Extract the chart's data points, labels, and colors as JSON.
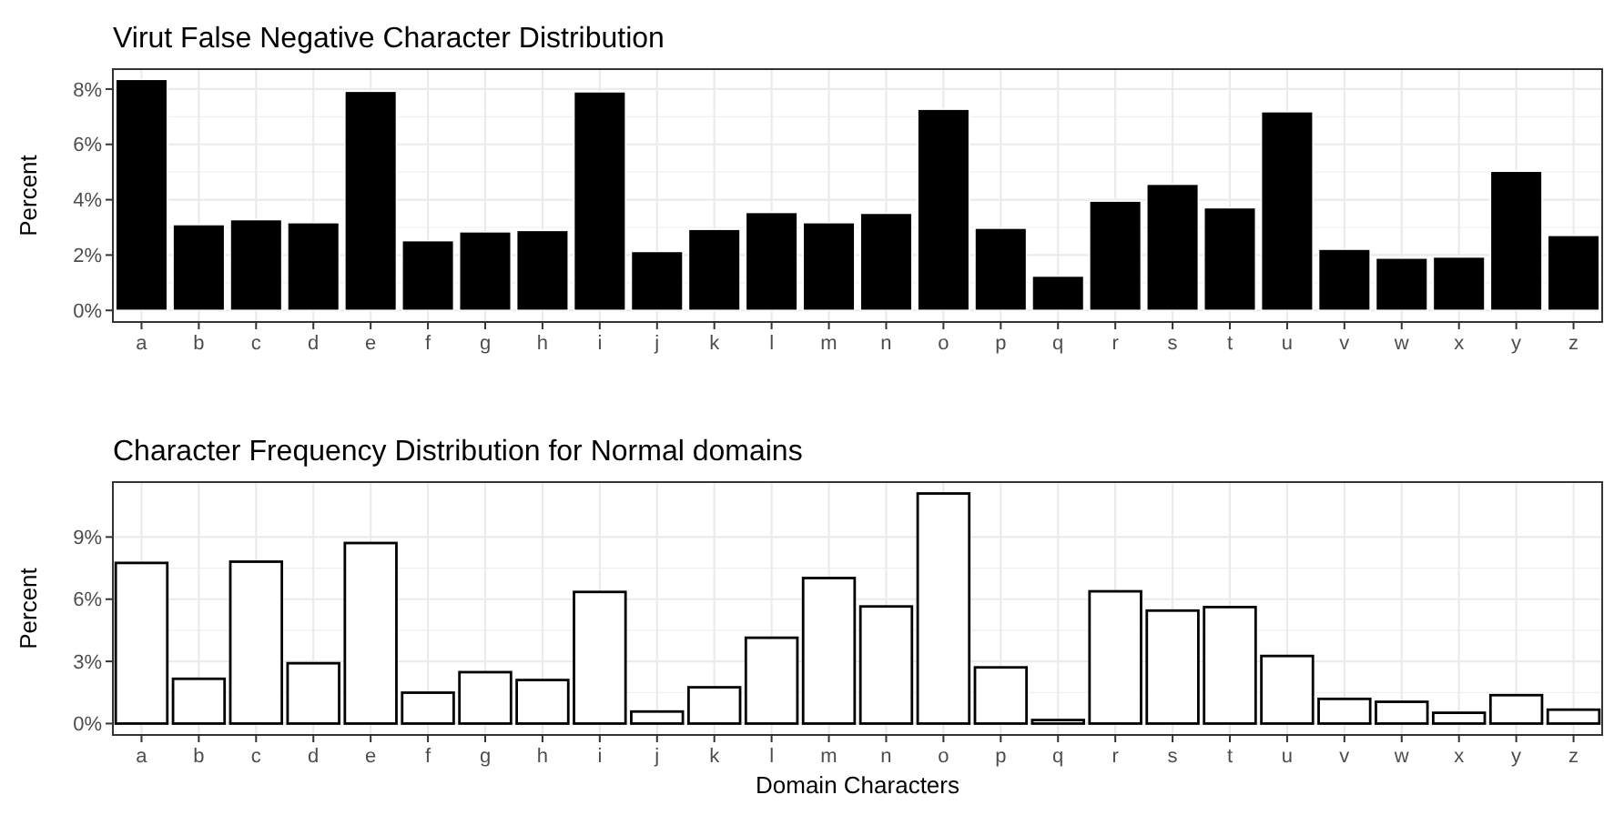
{
  "chart_data": [
    {
      "type": "bar",
      "title": "Virut False Negative Character Distribution",
      "ylabel": "Percent",
      "categories": [
        "a",
        "b",
        "c",
        "d",
        "e",
        "f",
        "g",
        "h",
        "i",
        "j",
        "k",
        "l",
        "m",
        "n",
        "o",
        "p",
        "q",
        "r",
        "s",
        "t",
        "u",
        "v",
        "w",
        "x",
        "y",
        "z"
      ],
      "series": [
        {
          "color": "#000000",
          "values": [
            8.35,
            3.1,
            3.28,
            3.17,
            7.92,
            2.52,
            2.84,
            2.89,
            7.9,
            2.13,
            2.93,
            3.54,
            3.17,
            3.51,
            7.27,
            2.97,
            1.24,
            3.95,
            4.56,
            3.71,
            7.18,
            2.21,
            1.89,
            1.93,
            5.03,
            2.71
          ]
        }
      ],
      "ylim": [
        -0.42,
        8.72
      ],
      "yticks": [
        {
          "value": 0,
          "label": "0%"
        },
        {
          "value": 2,
          "label": "2%"
        },
        {
          "value": 4,
          "label": "4%"
        },
        {
          "value": 6,
          "label": "6%"
        },
        {
          "value": 8,
          "label": "8%"
        }
      ],
      "grid": true
    },
    {
      "type": "bar",
      "title": "Character Frequency Distribution for Normal domains",
      "xlabel": "Domain Characters",
      "ylabel": "Percent",
      "categories": [
        "a",
        "b",
        "c",
        "d",
        "e",
        "f",
        "g",
        "h",
        "i",
        "j",
        "k",
        "l",
        "m",
        "n",
        "o",
        "p",
        "q",
        "r",
        "s",
        "t",
        "u",
        "v",
        "w",
        "x",
        "y",
        "z"
      ],
      "series": [
        {
          "color": "#ffffff",
          "values": [
            7.75,
            2.16,
            7.81,
            2.91,
            8.71,
            1.49,
            2.48,
            2.1,
            6.35,
            0.58,
            1.75,
            4.14,
            7.02,
            5.65,
            11.1,
            2.71,
            0.17,
            6.38,
            5.45,
            5.62,
            3.26,
            1.19,
            1.05,
            0.52,
            1.37,
            0.67
          ]
        }
      ],
      "ylim": [
        -0.55,
        11.65
      ],
      "yticks": [
        {
          "value": 0,
          "label": "0%"
        },
        {
          "value": 3,
          "label": "3%"
        },
        {
          "value": 6,
          "label": "6%"
        },
        {
          "value": 9,
          "label": "9%"
        }
      ],
      "grid": true
    }
  ]
}
